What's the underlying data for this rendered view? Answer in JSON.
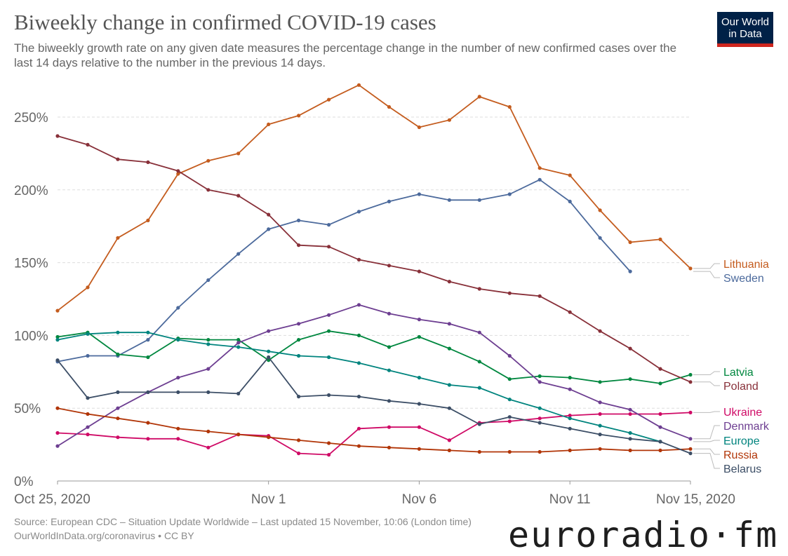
{
  "header": {
    "title": "Biweekly change in confirmed COVID-19 cases",
    "subtitle": "The biweekly growth rate on any given date measures the percentage change in the number of new confirmed cases over the last 14 days relative to the number in the previous 14 days.",
    "logo_line1": "Our World",
    "logo_line2": "in Data"
  },
  "footer": {
    "source": "Source: European CDC – Situation Update Worldwide – Last updated 15 November, 10:06 (London time)",
    "url": "OurWorldInData.org/coronavirus • CC BY"
  },
  "watermark": "euroradio·fm",
  "chart_data": {
    "type": "line",
    "title": "Biweekly change in confirmed COVID-19 cases",
    "xlabel": "",
    "ylabel": "",
    "ylim": [
      0,
      275
    ],
    "grid": true,
    "y_ticks": [
      0,
      50,
      100,
      150,
      200,
      250
    ],
    "y_tick_labels": [
      "0%",
      "50%",
      "100%",
      "150%",
      "200%",
      "250%"
    ],
    "x_ticks": [
      {
        "day": 0,
        "label": "Oct 25, 2020"
      },
      {
        "day": 7,
        "label": "Nov 1"
      },
      {
        "day": 12,
        "label": "Nov 6"
      },
      {
        "day": 17,
        "label": "Nov 11"
      },
      {
        "day": 21,
        "label": "Nov 15, 2020"
      }
    ],
    "x_day_range": [
      0,
      21
    ],
    "series": [
      {
        "name": "Lithuania",
        "color": "#c45c1e",
        "start_day": 0,
        "values": [
          117,
          133,
          167,
          179,
          211,
          220,
          225,
          245,
          251,
          262,
          272,
          257,
          243,
          248,
          264,
          257,
          215,
          210,
          186,
          164,
          166,
          146
        ]
      },
      {
        "name": "Sweden",
        "color": "#4c6a9c",
        "start_day": 0,
        "values": [
          82,
          86,
          86,
          97,
          119,
          138,
          156,
          173,
          179,
          176,
          185,
          192,
          197,
          193,
          193,
          197,
          207,
          192,
          167,
          144
        ]
      },
      {
        "name": "Latvia",
        "color": "#00873f",
        "start_day": 0,
        "values": [
          99,
          102,
          87,
          85,
          98,
          97,
          97,
          83,
          97,
          103,
          100,
          92,
          99,
          91,
          82,
          70,
          72,
          71,
          68,
          70,
          67,
          73
        ]
      },
      {
        "name": "Poland",
        "color": "#883039",
        "start_day": 0,
        "values": [
          237,
          231,
          221,
          219,
          213,
          200,
          196,
          183,
          162,
          161,
          152,
          148,
          144,
          137,
          132,
          129,
          127,
          116,
          103,
          91,
          77,
          68
        ]
      },
      {
        "name": "Ukraine",
        "color": "#cf0a66",
        "start_day": 0,
        "values": [
          33,
          32,
          30,
          29,
          29,
          23,
          32,
          31,
          19,
          18,
          36,
          37,
          37,
          28,
          40,
          41,
          43,
          45,
          46,
          46,
          46,
          47
        ]
      },
      {
        "name": "Denmark",
        "color": "#6d3e91",
        "start_day": 0,
        "values": [
          24,
          37,
          50,
          61,
          71,
          77,
          95,
          103,
          108,
          114,
          121,
          115,
          111,
          108,
          102,
          86,
          68,
          63,
          54,
          49,
          37,
          29
        ]
      },
      {
        "name": "Europe",
        "color": "#00847e",
        "start_day": 0,
        "values": [
          97,
          101,
          102,
          102,
          97,
          94,
          92,
          89,
          86,
          85,
          81,
          76,
          71,
          66,
          64,
          56,
          50,
          43,
          38,
          33,
          27
        ]
      },
      {
        "name": "Russia",
        "color": "#b13507",
        "start_day": 0,
        "values": [
          50,
          46,
          43,
          40,
          36,
          34,
          32,
          30,
          28,
          26,
          24,
          23,
          22,
          21,
          20,
          20,
          20,
          21,
          22,
          21,
          21,
          22
        ]
      },
      {
        "name": "Belarus",
        "color": "#3c4e66",
        "start_day": 0,
        "values": [
          83,
          57,
          61,
          61,
          61,
          61,
          60,
          85,
          58,
          59,
          58,
          55,
          53,
          50,
          39,
          44,
          40,
          36,
          32,
          29,
          27,
          19
        ]
      }
    ],
    "legend_position": "right"
  }
}
